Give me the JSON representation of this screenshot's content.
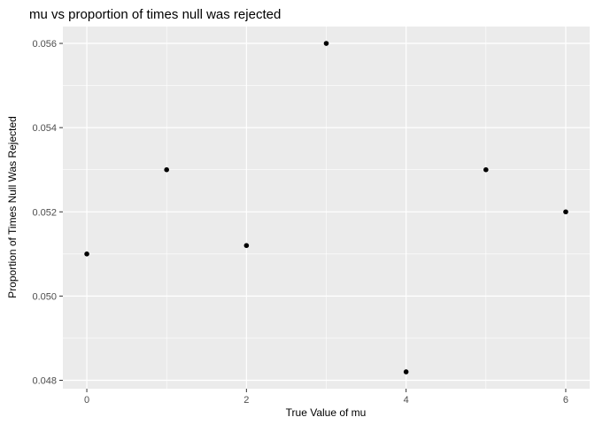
{
  "chart_data": {
    "type": "scatter",
    "title": "mu vs proportion of times null was rejected",
    "xlabel": "True Value of mu",
    "ylabel": "Proportion of Times Null Was Rejected",
    "x_ticks": [
      0,
      2,
      4,
      6
    ],
    "x_tick_labels": [
      "0",
      "2",
      "4",
      "6"
    ],
    "y_ticks": [
      0.048,
      0.05,
      0.052,
      0.054,
      0.056
    ],
    "y_tick_labels": [
      "0.048",
      "0.050",
      "0.052",
      "0.054",
      "0.056"
    ],
    "xlim": [
      -0.3,
      6.3
    ],
    "ylim": [
      0.0478,
      0.0564
    ],
    "grid": true,
    "background": "#ebebeb",
    "grid_color": "#ffffff",
    "point_color": "#000000",
    "points": [
      {
        "x": 0,
        "y": 0.051
      },
      {
        "x": 1,
        "y": 0.053
      },
      {
        "x": 2,
        "y": 0.0512
      },
      {
        "x": 3,
        "y": 0.056
      },
      {
        "x": 4,
        "y": 0.0482
      },
      {
        "x": 5,
        "y": 0.053
      },
      {
        "x": 6,
        "y": 0.052
      }
    ]
  }
}
